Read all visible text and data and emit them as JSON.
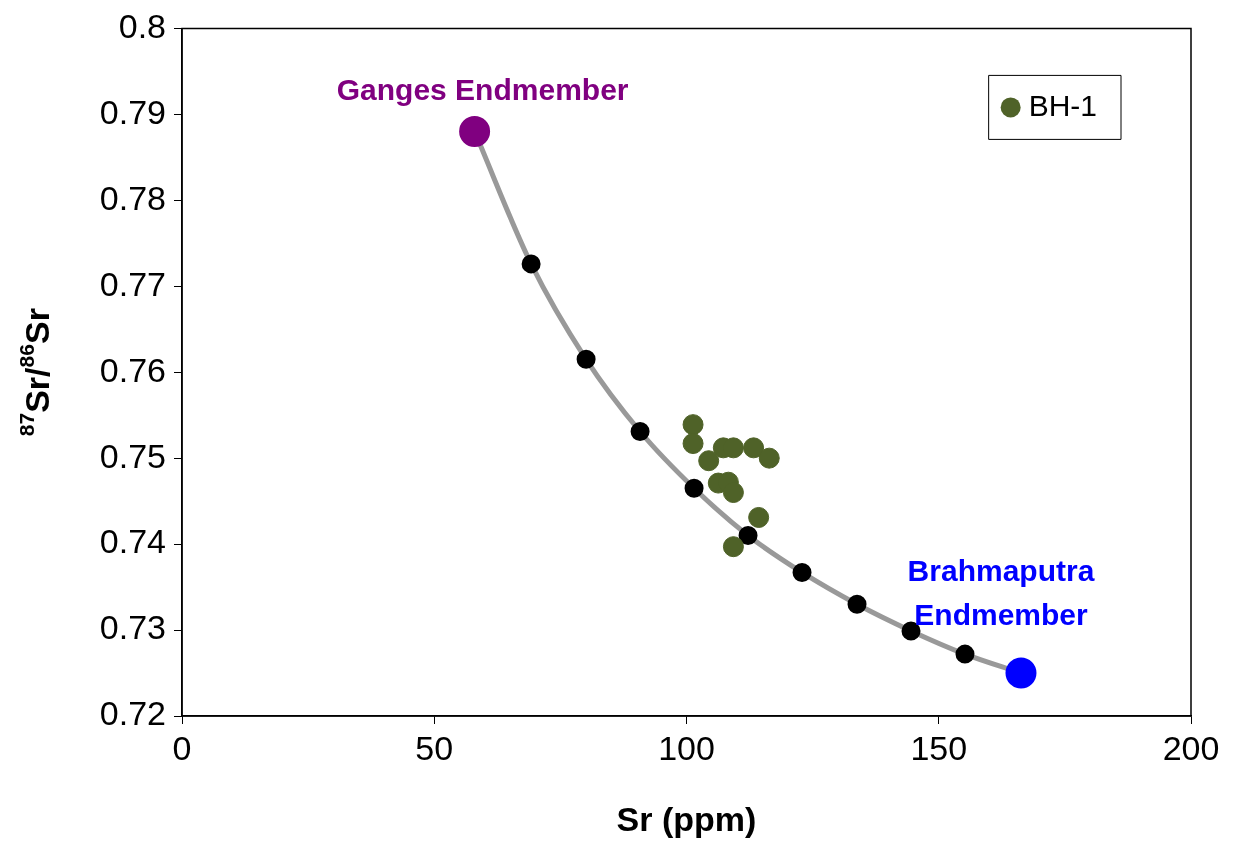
{
  "chart_data": {
    "type": "scatter",
    "xlabel": "Sr (ppm)",
    "ylabel": "$^{87}$Sr/$^{86}$Sr",
    "xlim": [
      0,
      200
    ],
    "xticks": [
      0,
      50,
      100,
      150,
      200
    ],
    "ylim": [
      0.72,
      0.8
    ],
    "yticks": [
      0.72,
      0.73,
      0.74,
      0.75,
      0.76,
      0.77,
      0.78,
      0.79,
      0.8
    ],
    "grid": false,
    "legend": "top right",
    "marker": "circle",
    "series": [
      {
        "type": "line",
        "color": "#999999",
        "colors": [
          "#800080",
          "#000000",
          "#000000",
          "#000000",
          "#000000",
          "#000000",
          "#000000",
          "#000000",
          "#000000",
          "#000000",
          "#0000ff"
        ],
        "x": [
          58,
          69.2,
          80.1,
          90.8,
          101.5,
          112.2,
          122.9,
          133.8,
          144.5,
          155.2,
          166.3
        ],
        "values": [
          0.788,
          0.7726,
          0.7615,
          0.7531,
          0.7465,
          0.741,
          0.7367,
          0.733,
          0.7299,
          0.7272,
          0.725
        ]
      },
      {
        "name": "BH-1",
        "color": "#4f6228",
        "x": [
          101.3,
          101.3,
          107.3,
          109.3,
          113.3,
          116.4,
          104.4,
          106.3,
          108.3,
          109.3,
          114.3,
          109.3
        ],
        "values": [
          0.7539,
          0.7517,
          0.7512,
          0.7512,
          0.7512,
          0.75,
          0.7497,
          0.7471,
          0.7472,
          0.746,
          0.7431,
          0.7397
        ]
      }
    ],
    "annotations": [
      {
        "text": "Ganges Endmember",
        "x": 58,
        "y": 0.788
      },
      {
        "text": "Brahmaputra\nEndmember",
        "x": 166.3,
        "y": 0.725
      }
    ]
  }
}
